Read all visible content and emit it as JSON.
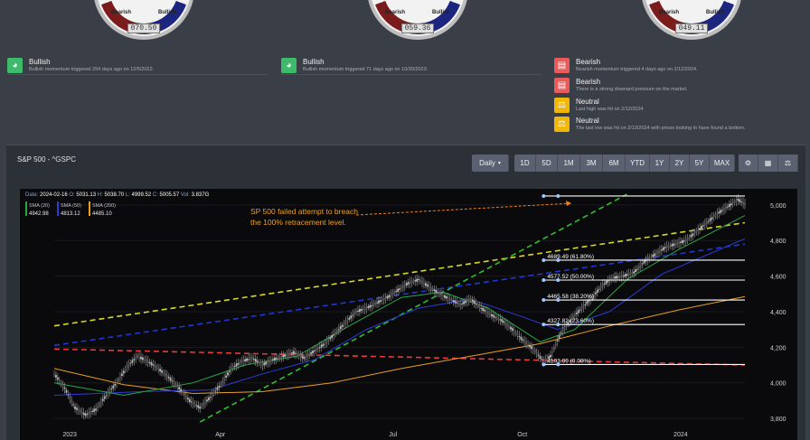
{
  "gauges": [
    {
      "bearish": "Bearish",
      "bullish": "Bullish",
      "value": "070.50"
    },
    {
      "bearish": "Bearish",
      "bullish": "Bullish",
      "value": "059.36"
    },
    {
      "bearish": "Bearish",
      "bullish": "Bullish",
      "value": "049.11"
    }
  ],
  "signals": {
    "col1": {
      "title": "Bullish",
      "desc": "Bullish momentum triggered 294 days ago on 12/5/2022."
    },
    "col2": {
      "title": "Bullish",
      "desc": "Bullish momentum triggered 71 days ago on 10/30/2023."
    },
    "col3": [
      {
        "title": "Bearish",
        "desc": "Bearish momentum triggered 4 days ago on 2/12/2024.",
        "type": "bear"
      },
      {
        "title": "Bearish",
        "desc": "There is a strong downard pressure on the market.",
        "type": "bear"
      },
      {
        "title": "Neutral",
        "desc": "Last high was hit on 2/12/2024",
        "type": "neutral"
      },
      {
        "title": "Neutral",
        "desc": "The last low was hit on 2/13/2024 with prices looking to have found a bottom.",
        "type": "neutral"
      }
    ]
  },
  "panel": {
    "title": "S&P 500 - ^GSPC",
    "interval": "Daily",
    "ranges": [
      "1D",
      "5D",
      "1M",
      "3M",
      "6M",
      "YTD",
      "1Y",
      "2Y",
      "5Y",
      "MAX"
    ],
    "tool_icons": [
      "settings-icon",
      "calculator-icon",
      "scale-icon"
    ]
  },
  "chart_data": {
    "type": "candlestick",
    "ohlc_header": {
      "date_label": "Date",
      "date": "2024-02-16",
      "o_label": "O",
      "o": "5031.13",
      "h_label": "H",
      "h": "5038.70",
      "l_label": "L",
      "l": "4999.52",
      "c_label": "C",
      "c": "5005.57",
      "vol_label": "Vol",
      "vol": "3.837G"
    },
    "sma": [
      {
        "name": "SMA (20)",
        "value": "4942.98",
        "color": "#28a745"
      },
      {
        "name": "SMA (50)",
        "value": "4813.12",
        "color": "#2b3bd6"
      },
      {
        "name": "SMA (200)",
        "value": "4485.10",
        "color": "#e8a020"
      }
    ],
    "x_ticks": [
      "2023",
      "Apr",
      "Jul",
      "Oct",
      "2024"
    ],
    "y_ticks": [
      "3,800",
      "4,000",
      "4,200",
      "4,400",
      "4,600",
      "4,800",
      "5,000"
    ],
    "ylim": [
      3780,
      5060
    ],
    "annotation": [
      "SP 500 failed attempt to breach",
      "the 100% retracement level."
    ],
    "fib_levels": [
      {
        "label": "4103.09 (0.00%)",
        "value": 4103.09
      },
      {
        "label": "4327.82 (23.60%)",
        "value": 4327.82
      },
      {
        "label": "4465.58 (38.20%)",
        "value": 4465.58
      },
      {
        "label": "4577.52 (50.00%)",
        "value": 4577.52
      },
      {
        "label": "4689.49 (61.80%)",
        "value": 4689.49
      },
      {
        "label": "",
        "value": 5050
      }
    ],
    "price_path": [
      [
        0,
        4050
      ],
      [
        3,
        3970
      ],
      [
        6,
        3860
      ],
      [
        9,
        3820
      ],
      [
        12,
        3850
      ],
      [
        15,
        3930
      ],
      [
        18,
        4000
      ],
      [
        21,
        4090
      ],
      [
        24,
        4150
      ],
      [
        27,
        4120
      ],
      [
        30,
        4080
      ],
      [
        33,
        4030
      ],
      [
        36,
        3970
      ],
      [
        39,
        3900
      ],
      [
        42,
        3860
      ],
      [
        45,
        3920
      ],
      [
        48,
        3990
      ],
      [
        51,
        4080
      ],
      [
        54,
        4120
      ],
      [
        57,
        4140
      ],
      [
        60,
        4100
      ],
      [
        63,
        4130
      ],
      [
        66,
        4150
      ],
      [
        69,
        4170
      ],
      [
        72,
        4140
      ],
      [
        75,
        4180
      ],
      [
        78,
        4220
      ],
      [
        81,
        4280
      ],
      [
        84,
        4340
      ],
      [
        87,
        4400
      ],
      [
        90,
        4420
      ],
      [
        93,
        4450
      ],
      [
        96,
        4480
      ],
      [
        99,
        4520
      ],
      [
        102,
        4560
      ],
      [
        105,
        4580
      ],
      [
        108,
        4540
      ],
      [
        111,
        4500
      ],
      [
        114,
        4470
      ],
      [
        117,
        4440
      ],
      [
        120,
        4470
      ],
      [
        123,
        4420
      ],
      [
        126,
        4380
      ],
      [
        129,
        4350
      ],
      [
        132,
        4300
      ],
      [
        135,
        4240
      ],
      [
        138,
        4190
      ],
      [
        141,
        4120
      ],
      [
        143,
        4150
      ],
      [
        146,
        4280
      ],
      [
        149,
        4360
      ],
      [
        152,
        4420
      ],
      [
        155,
        4480
      ],
      [
        158,
        4550
      ],
      [
        161,
        4590
      ],
      [
        164,
        4600
      ],
      [
        167,
        4620
      ],
      [
        170,
        4680
      ],
      [
        173,
        4720
      ],
      [
        176,
        4760
      ],
      [
        179,
        4780
      ],
      [
        182,
        4800
      ],
      [
        185,
        4850
      ],
      [
        188,
        4900
      ],
      [
        191,
        4950
      ],
      [
        194,
        4990
      ],
      [
        197,
        5030
      ],
      [
        199,
        5005
      ]
    ],
    "sma20": [
      [
        0,
        4000
      ],
      [
        20,
        3930
      ],
      [
        40,
        4000
      ],
      [
        55,
        4100
      ],
      [
        70,
        4150
      ],
      [
        85,
        4320
      ],
      [
        100,
        4480
      ],
      [
        112,
        4510
      ],
      [
        125,
        4420
      ],
      [
        140,
        4230
      ],
      [
        150,
        4300
      ],
      [
        165,
        4580
      ],
      [
        180,
        4750
      ],
      [
        199,
        4940
      ]
    ],
    "sma50": [
      [
        0,
        3930
      ],
      [
        25,
        3950
      ],
      [
        45,
        3960
      ],
      [
        60,
        4050
      ],
      [
        75,
        4130
      ],
      [
        90,
        4300
      ],
      [
        105,
        4420
      ],
      [
        120,
        4470
      ],
      [
        135,
        4370
      ],
      [
        145,
        4300
      ],
      [
        160,
        4400
      ],
      [
        175,
        4610
      ],
      [
        199,
        4810
      ]
    ],
    "sma200": [
      [
        0,
        4080
      ],
      [
        20,
        3990
      ],
      [
        40,
        3940
      ],
      [
        60,
        3950
      ],
      [
        80,
        4000
      ],
      [
        100,
        4080
      ],
      [
        120,
        4150
      ],
      [
        140,
        4220
      ],
      [
        160,
        4320
      ],
      [
        180,
        4410
      ],
      [
        199,
        4485
      ]
    ],
    "trend_lines": [
      {
        "color": "#e23c3c",
        "from": [
          0,
          4190
        ],
        "to": [
          199,
          4100
        ]
      },
      {
        "color": "#2235d8",
        "from": [
          0,
          4210
        ],
        "to": [
          199,
          4780
        ]
      },
      {
        "color": "#d9d920",
        "from": [
          0,
          4320
        ],
        "to": [
          199,
          4900
        ]
      },
      {
        "color": "#2fbf2f",
        "from": [
          42,
          3780
        ],
        "to": [
          165,
          5060
        ]
      }
    ]
  }
}
